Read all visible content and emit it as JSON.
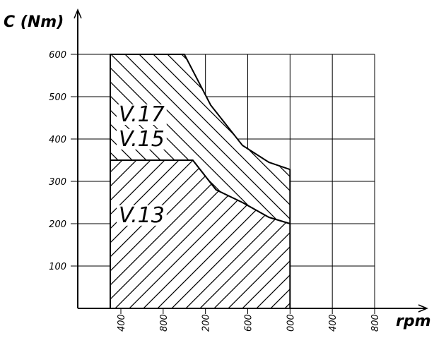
{
  "chart_data": {
    "type": "area",
    "title": "",
    "ylabel": "C (Nm)",
    "xlabel": "rpm",
    "ylim": [
      0,
      600
    ],
    "xlim": [
      1150,
      3950
    ],
    "grid": true,
    "y_ticks": [
      {
        "value": 100,
        "label": "100"
      },
      {
        "value": 200,
        "label": "200"
      },
      {
        "value": 300,
        "label": "300"
      },
      {
        "value": 400,
        "label": "400"
      },
      {
        "value": 500,
        "label": "500"
      },
      {
        "value": 600,
        "label": "600"
      }
    ],
    "x_ticks": [
      {
        "value": 1400,
        "label": "400"
      },
      {
        "value": 1800,
        "label": "800"
      },
      {
        "value": 2200,
        "label": "200"
      },
      {
        "value": 2600,
        "label": "600"
      },
      {
        "value": 3000,
        "label": "000"
      },
      {
        "value": 3400,
        "label": "400"
      },
      {
        "value": 3800,
        "label": "800"
      }
    ],
    "series": [
      {
        "name": "V.17 V.15",
        "hatch": "backslash",
        "boundary": [
          {
            "x": 1300,
            "y": 600
          },
          {
            "x": 2000,
            "y": 600
          },
          {
            "x": 2250,
            "y": 480
          },
          {
            "x": 2550,
            "y": 385
          },
          {
            "x": 2800,
            "y": 345
          },
          {
            "x": 3000,
            "y": 328
          },
          {
            "x": 3000,
            "y": 200
          },
          {
            "x": 2800,
            "y": 215
          },
          {
            "x": 2550,
            "y": 250
          },
          {
            "x": 2300,
            "y": 280
          },
          {
            "x": 2080,
            "y": 350
          },
          {
            "x": 1300,
            "y": 350
          }
        ]
      },
      {
        "name": "V.13",
        "hatch": "slash",
        "boundary": [
          {
            "x": 1300,
            "y": 0
          },
          {
            "x": 3000,
            "y": 0
          },
          {
            "x": 3000,
            "y": 200
          },
          {
            "x": 2800,
            "y": 215
          },
          {
            "x": 2550,
            "y": 250
          },
          {
            "x": 2300,
            "y": 280
          },
          {
            "x": 2080,
            "y": 350
          },
          {
            "x": 1300,
            "y": 350
          }
        ]
      }
    ],
    "annotations": [
      {
        "text": "V.17",
        "x": 1380,
        "y": 460
      },
      {
        "text": "V.15",
        "x": 1380,
        "y": 402
      },
      {
        "text": "V.13",
        "x": 1380,
        "y": 222
      }
    ]
  }
}
